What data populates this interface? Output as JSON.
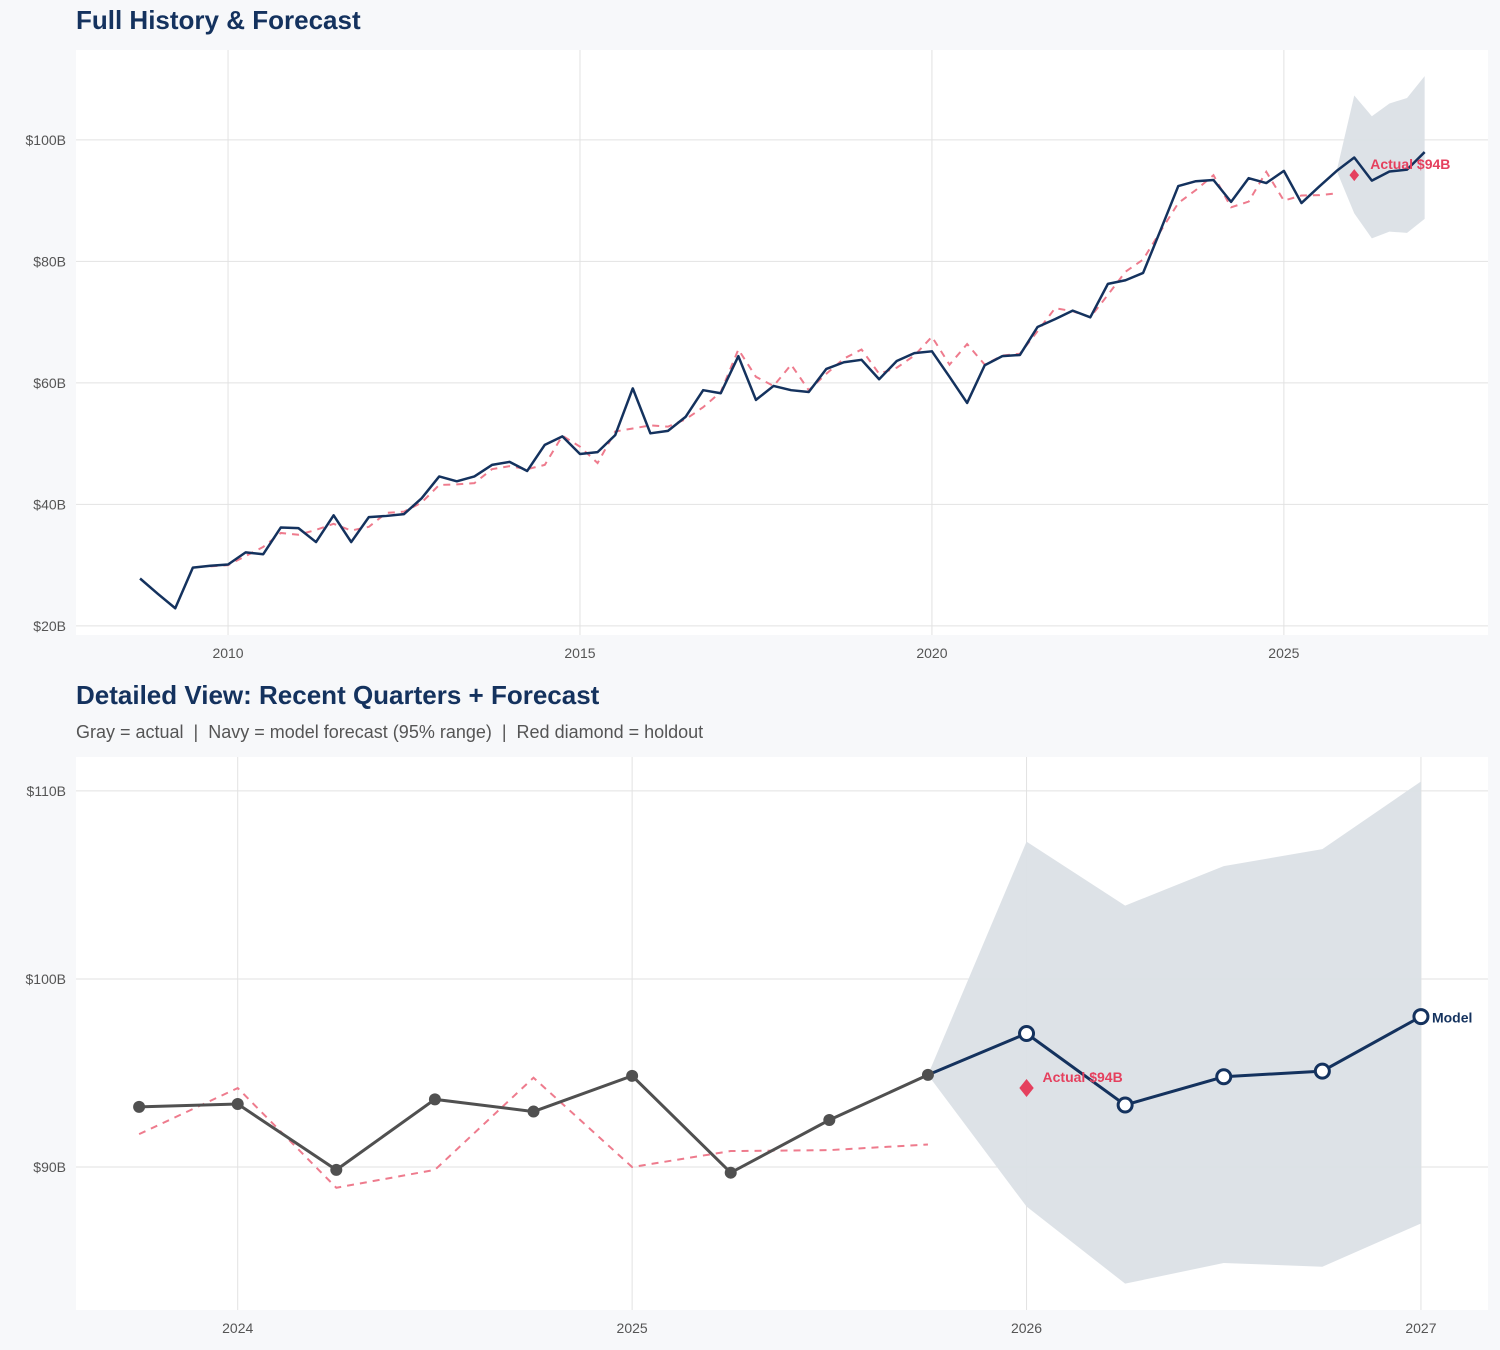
{
  "colors": {
    "navy": "#14325e",
    "red": "#e5405e",
    "fitted": "#ee7b8d",
    "gray": "#505050",
    "band": "#dbe0e6",
    "grid": "#e2e2e2"
  },
  "chart_data": [
    {
      "type": "line",
      "title": "Full History & Forecast",
      "xlim": [
        2007.84,
        2027.9
      ],
      "ylim": [
        18.5,
        114.8
      ],
      "grid": true,
      "x_ticks": [
        {
          "v": 2010,
          "label": "2010"
        },
        {
          "v": 2015,
          "label": "2015"
        },
        {
          "v": 2020,
          "label": "2020"
        },
        {
          "v": 2025,
          "label": "2025"
        }
      ],
      "y_ticks": [
        {
          "v": 20,
          "label": "$20B"
        },
        {
          "v": 40,
          "label": "$40B"
        },
        {
          "v": 60,
          "label": "$60B"
        },
        {
          "v": 80,
          "label": "$80B"
        },
        {
          "v": 100,
          "label": "$100B"
        }
      ],
      "actual": {
        "x_start": 2008.75,
        "step": 0.25,
        "values": [
          27.8,
          25.3,
          22.9,
          29.6,
          29.9,
          30.1,
          32.1,
          31.8,
          36.2,
          36.1,
          33.8,
          38.2,
          33.8,
          37.9,
          38.1,
          38.4,
          41.0,
          44.6,
          43.8,
          44.6,
          46.5,
          47.0,
          45.5,
          49.8,
          51.2,
          48.3,
          48.6,
          51.4,
          59.1,
          51.7,
          52.1,
          54.4,
          58.8,
          58.3,
          64.4,
          57.2,
          59.5,
          58.8,
          58.5,
          62.3,
          63.4,
          63.8,
          60.6,
          63.6,
          64.9,
          65.2,
          61.0,
          56.7,
          62.9,
          64.4,
          64.6,
          69.2,
          70.5,
          71.9,
          70.8,
          76.3,
          76.9,
          78.1,
          85.2,
          92.4,
          93.2,
          93.4,
          89.8,
          93.7,
          92.9,
          94.9,
          89.6,
          92.3,
          94.9
        ]
      },
      "fitted": {
        "x_start": 2009.75,
        "step": 0.25,
        "values": [
          29.8,
          30.0,
          31.5,
          33.0,
          35.3,
          35.0,
          35.8,
          36.8,
          35.7,
          36.3,
          38.6,
          38.8,
          40.3,
          43.2,
          43.3,
          43.5,
          45.8,
          46.3,
          45.8,
          46.5,
          51.3,
          49.5,
          46.8,
          52.0,
          52.5,
          53.0,
          52.8,
          54.0,
          56.0,
          58.5,
          65.5,
          61.0,
          59.5,
          63.0,
          58.8,
          61.5,
          64.0,
          65.5,
          61.5,
          62.5,
          64.5,
          67.6,
          63.0,
          66.4,
          63.0,
          64.5,
          64.8,
          68.5,
          72.3,
          71.8,
          70.8,
          74.5,
          78.3,
          80.3,
          85.0,
          89.6,
          91.75,
          94.2,
          88.9,
          89.85,
          94.75,
          90.0,
          90.85,
          90.9,
          91.2
        ]
      },
      "forecast": {
        "x": [
          2025.75,
          2026.0,
          2026.25,
          2026.5,
          2026.75,
          2027.0
        ],
        "values": [
          94.9,
          97.1,
          93.3,
          94.8,
          95.1,
          98.0
        ],
        "upper": [
          94.9,
          107.3,
          103.9,
          106.0,
          106.9,
          110.5
        ],
        "lower": [
          94.9,
          87.9,
          83.8,
          84.9,
          84.7,
          87.0
        ]
      },
      "holdout": {
        "x": 2026.0,
        "value": 94.2,
        "label": "Actual $94B"
      }
    },
    {
      "type": "line",
      "title": "Detailed View: Recent Quarters + Forecast",
      "subtitle": "Gray = actual  |  Navy = model forecast (95% range)  |  Red diamond = holdout",
      "xlim": [
        2023.59,
        2027.17
      ],
      "ylim": [
        82.4,
        111.8
      ],
      "grid": true,
      "x_ticks": [
        {
          "v": 2024,
          "label": "2024"
        },
        {
          "v": 2025,
          "label": "2025"
        },
        {
          "v": 2026,
          "label": "2026"
        },
        {
          "v": 2027,
          "label": "2027"
        }
      ],
      "y_ticks": [
        {
          "v": 90,
          "label": "$90B"
        },
        {
          "v": 100,
          "label": "$100B"
        },
        {
          "v": 110,
          "label": "$110B"
        }
      ],
      "actual": {
        "x_start": 2023.75,
        "step": 0.25,
        "values": [
          93.2,
          93.35,
          89.85,
          93.6,
          92.95,
          94.85,
          89.7,
          92.5,
          94.9
        ]
      },
      "fitted": {
        "x_start": 2023.75,
        "step": 0.25,
        "values": [
          91.75,
          94.2,
          88.9,
          89.85,
          94.75,
          90.0,
          90.85,
          90.9,
          91.2
        ]
      },
      "forecast": {
        "x": [
          2025.75,
          2026.0,
          2026.25,
          2026.5,
          2026.75,
          2027.0
        ],
        "values": [
          94.9,
          97.1,
          93.3,
          94.8,
          95.1,
          98.0
        ],
        "upper": [
          94.9,
          107.3,
          103.9,
          106.0,
          106.9,
          110.5
        ],
        "lower": [
          94.9,
          87.9,
          83.8,
          84.9,
          84.7,
          87.0
        ],
        "end_label": "Model"
      },
      "holdout": {
        "x": 2026.0,
        "value": 94.2,
        "label": "Actual $94B"
      }
    }
  ]
}
